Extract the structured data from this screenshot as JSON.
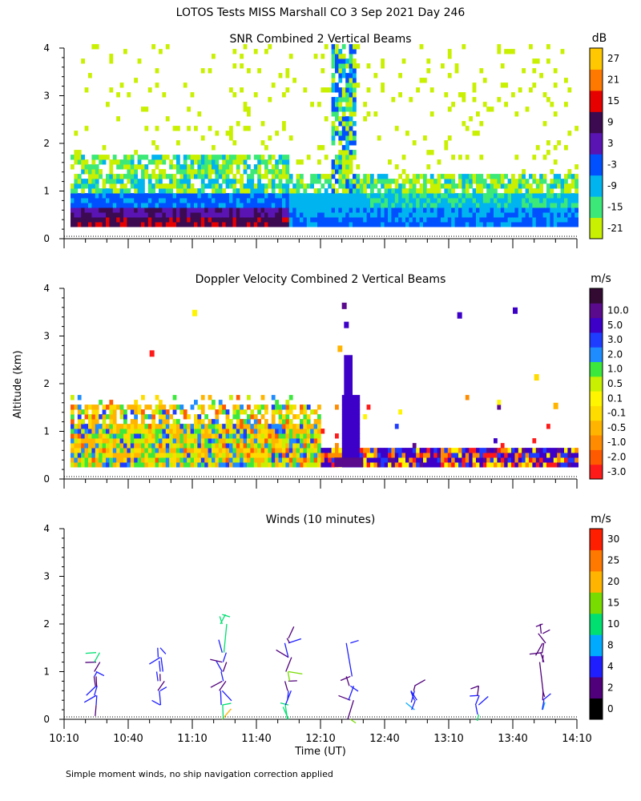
{
  "title": "LOTOS Tests MISS Marshall CO    3 Sep 2021 Day 246",
  "ylabel": "Altitude (km)",
  "xlabel": "Time (UT)",
  "footnote": "Simple moment winds, no ship navigation correction applied",
  "chart_data": [
    {
      "type": "heatmap",
      "title": "SNR Combined 2 Vertical Beams",
      "colorbar_unit": "dB",
      "colorbar_ticks": [
        "-21",
        "-15",
        "-9",
        "-3",
        "3",
        "9",
        "15",
        "21",
        "27"
      ],
      "colorbar_colors": [
        "#c8f000",
        "#3ce878",
        "#00b4f0",
        "#0050ff",
        "#5a14b4",
        "#3c0a50",
        "#e60000",
        "#ff7800",
        "#ffc800"
      ],
      "yticks": [
        "0",
        "1",
        "2",
        "3",
        "4"
      ],
      "ylim": [
        0,
        4
      ],
      "xlim_minutes": [
        0,
        240
      ],
      "data_top_km": 4.0,
      "data_bottom_km": 0.25
    },
    {
      "type": "heatmap",
      "title": "Doppler Velocity Combined 2 Vertical Beams",
      "colorbar_unit": "m/s",
      "colorbar_ticks": [
        "-3.0",
        "-2.0",
        "-1.0",
        "-0.5",
        "-0.1",
        "0.1",
        "0.5",
        "1.0",
        "2.0",
        "3.0",
        "5.0",
        "10.0"
      ],
      "colorbar_colors": [
        "#ff1a1a",
        "#ff5a00",
        "#ff8c00",
        "#ffb400",
        "#ffdc00",
        "#fff500",
        "#c8f000",
        "#3ce83c",
        "#1e8cff",
        "#1e3cff",
        "#3c00c8",
        "#5a0a8c",
        "#320a32"
      ],
      "yticks": [
        "0",
        "1",
        "2",
        "3",
        "4"
      ],
      "ylim": [
        0,
        4
      ],
      "xlim_minutes": [
        0,
        240
      ]
    },
    {
      "type": "scatter",
      "title": "Winds (10 minutes)",
      "colorbar_unit": "m/s",
      "colorbar_ticks": [
        "0",
        "2",
        "4",
        "8",
        "10",
        "15",
        "20",
        "25",
        "30"
      ],
      "colorbar_colors": [
        "#000000",
        "#50007a",
        "#1e1eff",
        "#00aaff",
        "#00e070",
        "#78dc00",
        "#ffb400",
        "#ff7800",
        "#ff1e00"
      ],
      "yticks": [
        "0",
        "1",
        "2",
        "3",
        "4"
      ],
      "ylim": [
        0,
        4
      ],
      "xticks": [
        "10:10",
        "10:40",
        "11:10",
        "11:40",
        "12:10",
        "12:40",
        "13:10",
        "13:40",
        "14:10"
      ],
      "xlim_minutes": [
        0,
        240
      ],
      "profile_times_min": [
        15,
        45,
        75,
        105,
        135,
        165,
        195,
        225
      ],
      "profiles": [
        {
          "t": 15,
          "alt": [
            0.3,
            0.5,
            0.7,
            0.9,
            1.0,
            1.2,
            1.4
          ],
          "speed": [
            3,
            4,
            6,
            3,
            5,
            3,
            10
          ]
        },
        {
          "t": 45,
          "alt": [
            0.3,
            0.6,
            0.8,
            1.0,
            1.3,
            1.5
          ],
          "speed": [
            6,
            4,
            3,
            4,
            5,
            4
          ]
        },
        {
          "t": 74,
          "alt": [
            0.0,
            0.3,
            0.6,
            0.8,
            1.0,
            1.2,
            1.4,
            2.0,
            2.2
          ],
          "speed": [
            20,
            10,
            4,
            3,
            5,
            3,
            4,
            10,
            12
          ]
        },
        {
          "t": 105,
          "alt": [
            0.0,
            0.3,
            0.6,
            0.8,
            1.0,
            1.3,
            1.6,
            1.7
          ],
          "speed": [
            12,
            10,
            4,
            3,
            15,
            3,
            4,
            3
          ]
        },
        {
          "t": 134,
          "alt": [
            0.0,
            0.4,
            0.7,
            0.9,
            1.6
          ],
          "speed": [
            15,
            3,
            4,
            3,
            4
          ]
        },
        {
          "t": 164,
          "alt": [
            0.2,
            0.4,
            0.6,
            0.7
          ],
          "speed": [
            8,
            6,
            4,
            3
          ]
        },
        {
          "t": 194,
          "alt": [
            0.1,
            0.3,
            0.5,
            0.7
          ],
          "speed": [
            10,
            6,
            4,
            3
          ]
        },
        {
          "t": 224,
          "alt": [
            0.2,
            0.4,
            0.6,
            1.2,
            1.4,
            1.6,
            1.8,
            2.0
          ],
          "speed": [
            8,
            6,
            3,
            3,
            3,
            3,
            3,
            3
          ]
        }
      ]
    }
  ]
}
